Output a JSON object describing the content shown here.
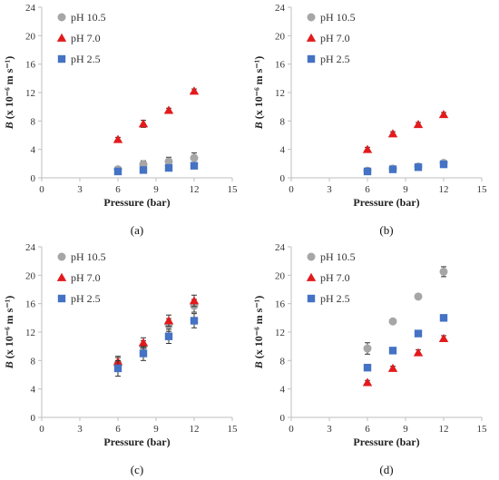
{
  "colors": {
    "pH 10.5": "#a6a6a6",
    "pH 7.0": "#e31a1c",
    "pH 2.5": "#4472c4"
  },
  "chart_data": [
    {
      "type": "scatter",
      "panel_label": "(a)",
      "xlabel": "Pressure (bar)",
      "ylabel": "B (x 10⁻⁶ m s⁻¹)",
      "xlim": [
        0,
        15
      ],
      "ylim": [
        0,
        24
      ],
      "xticks": [
        0,
        3,
        6,
        9,
        12,
        15
      ],
      "yticks": [
        0,
        4,
        8,
        12,
        16,
        20,
        24
      ],
      "legend_position": "top-left",
      "series": [
        {
          "name": "pH 10.5",
          "marker": "circle",
          "x": [
            6,
            8,
            10,
            12
          ],
          "y": [
            1.2,
            1.9,
            2.3,
            2.8
          ],
          "err": [
            0.3,
            0.5,
            0.6,
            0.7
          ]
        },
        {
          "name": "pH 7.0",
          "marker": "triangle",
          "x": [
            6,
            8,
            10,
            12
          ],
          "y": [
            5.4,
            7.6,
            9.5,
            12.2
          ],
          "err": [
            0.3,
            0.5,
            0.3,
            0.3
          ]
        },
        {
          "name": "pH 2.5",
          "marker": "square",
          "x": [
            6,
            8,
            10,
            12
          ],
          "y": [
            0.9,
            1.1,
            1.4,
            1.7
          ],
          "err": [
            0.1,
            0.1,
            0.1,
            0.1
          ]
        }
      ]
    },
    {
      "type": "scatter",
      "panel_label": "(b)",
      "xlabel": "Pressure (bar)",
      "ylabel": "B (x 10⁻⁶ m s⁻¹)",
      "xlim": [
        0,
        15
      ],
      "ylim": [
        0,
        24
      ],
      "xticks": [
        0,
        3,
        6,
        9,
        12,
        15
      ],
      "yticks": [
        0,
        4,
        8,
        12,
        16,
        20,
        24
      ],
      "legend_position": "top-left",
      "series": [
        {
          "name": "pH 10.5",
          "marker": "circle",
          "x": [
            6,
            8,
            10,
            12
          ],
          "y": [
            1.0,
            1.3,
            1.6,
            2.1
          ],
          "err": [
            0.1,
            0.1,
            0.1,
            0.2
          ]
        },
        {
          "name": "pH 7.0",
          "marker": "triangle",
          "x": [
            6,
            8,
            10,
            12
          ],
          "y": [
            4.0,
            6.2,
            7.5,
            8.9
          ],
          "err": [
            0.3,
            0.3,
            0.3,
            0.3
          ]
        },
        {
          "name": "pH 2.5",
          "marker": "square",
          "x": [
            6,
            8,
            10,
            12
          ],
          "y": [
            0.9,
            1.2,
            1.5,
            1.9
          ],
          "err": [
            0.1,
            0.1,
            0.1,
            0.1
          ]
        }
      ]
    },
    {
      "type": "scatter",
      "panel_label": "(c)",
      "xlabel": "Pressure (bar)",
      "ylabel": "B (x 10⁻⁶ m s⁻¹)",
      "xlim": [
        0,
        15
      ],
      "ylim": [
        0,
        24
      ],
      "xticks": [
        0,
        3,
        6,
        9,
        12,
        15
      ],
      "yticks": [
        0,
        4,
        8,
        12,
        16,
        20,
        24
      ],
      "legend_position": "top-left",
      "series": [
        {
          "name": "pH 10.5",
          "marker": "circle",
          "x": [
            6,
            8,
            10,
            12
          ],
          "y": [
            7.6,
            10.0,
            13.0,
            15.7
          ],
          "err": [
            0.8,
            0.8,
            0.9,
            0.9
          ]
        },
        {
          "name": "pH 7.0",
          "marker": "triangle",
          "x": [
            6,
            8,
            10,
            12
          ],
          "y": [
            7.8,
            10.5,
            13.6,
            16.4
          ],
          "err": [
            0.8,
            0.7,
            0.8,
            0.8
          ]
        },
        {
          "name": "pH 2.5",
          "marker": "square",
          "x": [
            6,
            8,
            10,
            12
          ],
          "y": [
            6.9,
            9.0,
            11.4,
            13.6
          ],
          "err": [
            1.1,
            1.0,
            1.0,
            1.0
          ]
        }
      ]
    },
    {
      "type": "scatter",
      "panel_label": "(d)",
      "xlabel": "Pressure (bar)",
      "ylabel": "B (x 10⁻⁶ m s⁻¹)",
      "xlim": [
        0,
        15
      ],
      "ylim": [
        0,
        24
      ],
      "xticks": [
        0,
        3,
        6,
        9,
        12,
        15
      ],
      "yticks": [
        0,
        4,
        8,
        12,
        16,
        20,
        24
      ],
      "legend_position": "top-left",
      "series": [
        {
          "name": "pH 10.5",
          "marker": "circle",
          "x": [
            6,
            8,
            10,
            12
          ],
          "y": [
            9.7,
            13.5,
            17.0,
            20.5
          ],
          "err": [
            0.8,
            0.3,
            0.2,
            0.7
          ]
        },
        {
          "name": "pH 7.0",
          "marker": "triangle",
          "x": [
            6,
            8,
            10,
            12
          ],
          "y": [
            4.9,
            6.9,
            9.1,
            11.1
          ],
          "err": [
            0.3,
            0.3,
            0.4,
            0.4
          ]
        },
        {
          "name": "pH 2.5",
          "marker": "square",
          "x": [
            6,
            8,
            10,
            12
          ],
          "y": [
            7.0,
            9.4,
            11.8,
            14.0
          ],
          "err": [
            0.2,
            0.2,
            0.2,
            0.2
          ]
        }
      ]
    }
  ]
}
